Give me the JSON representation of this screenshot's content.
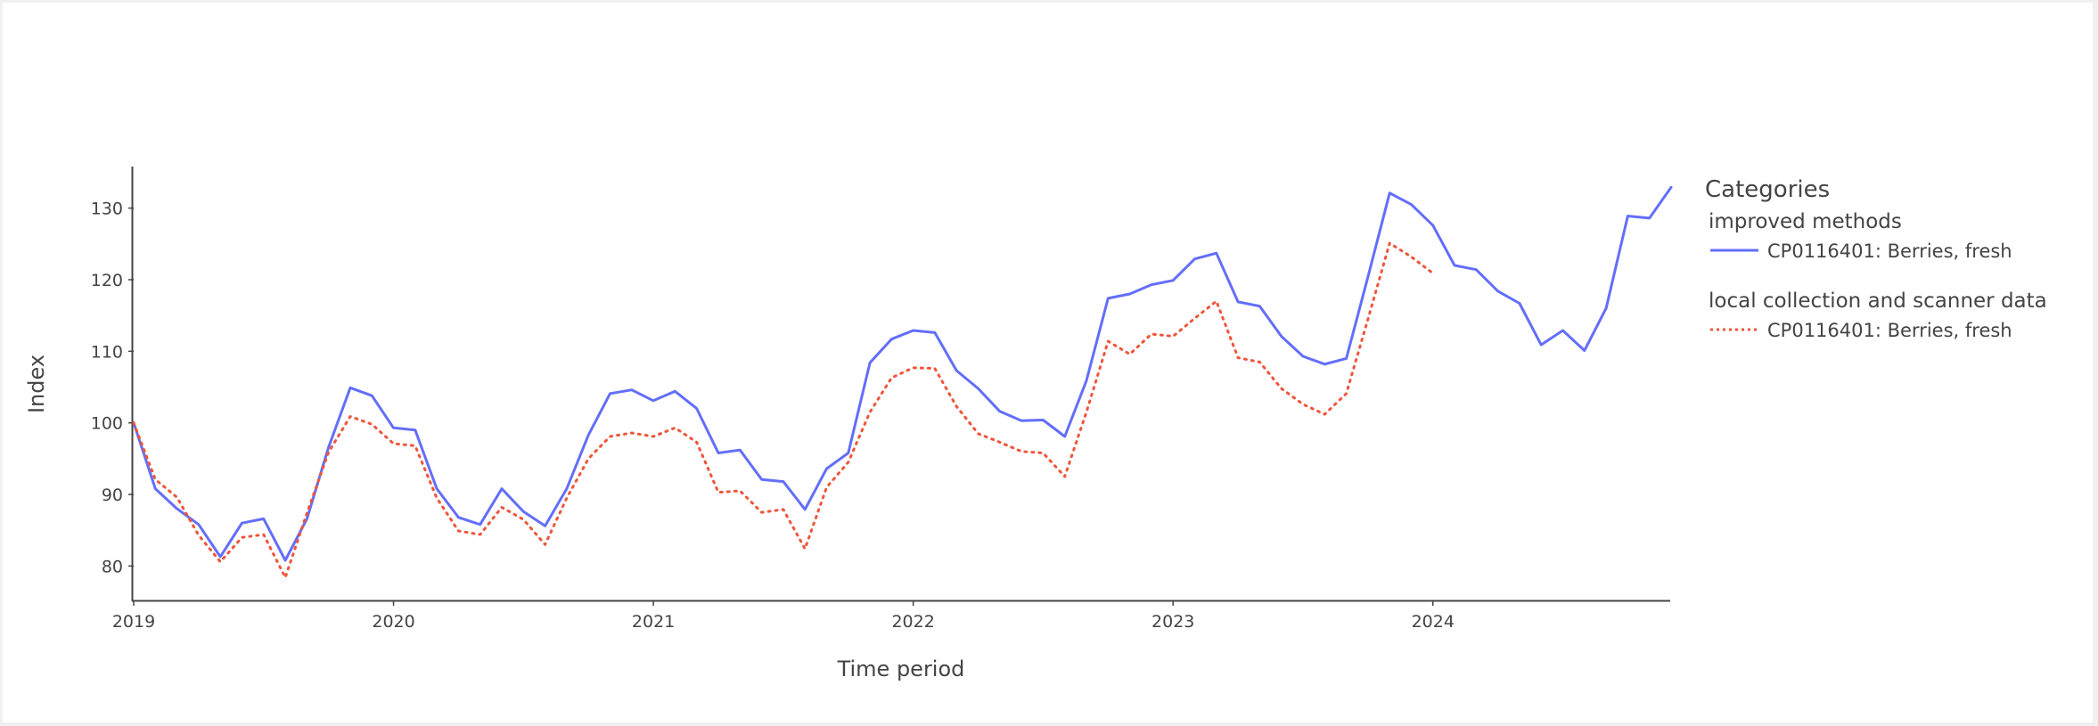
{
  "chart_data": {
    "type": "line",
    "title": "",
    "xlabel": "Time period",
    "ylabel": "Index",
    "x_tick_labels": [
      "2019",
      "2020",
      "2021",
      "2022",
      "2023",
      "2024"
    ],
    "y_ticks": [
      80,
      90,
      100,
      110,
      120,
      130
    ],
    "xlim": [
      "2019-01",
      "2024-12"
    ],
    "ylim": [
      75.2,
      135.8
    ],
    "grid": false,
    "legend": {
      "title": "Categories",
      "placement": "right",
      "groups": [
        {
          "label": "improved methods",
          "entries": [
            "CP0116401: Berries, fresh"
          ]
        },
        {
          "label": "local collection and scanner data",
          "entries": [
            "CP0116401: Berries, fresh"
          ]
        }
      ]
    },
    "series": [
      {
        "name": "CP0116401: Berries, fresh",
        "group": "improved methods",
        "color": "#636efa",
        "dash": "solid",
        "start": "2019-01",
        "values": [
          100.0,
          90.8,
          88.0,
          85.8,
          81.3,
          86.0,
          86.6,
          80.8,
          86.6,
          96.6,
          104.9,
          103.8,
          99.3,
          99.0,
          90.8,
          86.8,
          85.8,
          90.8,
          87.6,
          85.6,
          90.8,
          98.3,
          104.1,
          104.6,
          103.1,
          104.4,
          102.0,
          95.8,
          96.2,
          92.1,
          91.8,
          87.9,
          93.6,
          95.8,
          108.4,
          111.7,
          112.9,
          112.6,
          107.3,
          104.8,
          101.6,
          100.3,
          100.4,
          98.1,
          105.9,
          117.4,
          118.0,
          119.3,
          119.9,
          122.9,
          123.7,
          116.9,
          116.3,
          112.1,
          109.3,
          108.2,
          109.0,
          120.4,
          132.1,
          130.5,
          127.6,
          122.0,
          121.4,
          118.4,
          116.7,
          110.9,
          112.9,
          110.1,
          116.0,
          128.9,
          128.6,
          132.9
        ]
      },
      {
        "name": "CP0116401: Berries, fresh",
        "group": "local collection and scanner data",
        "color": "#ef553b",
        "dash": "dot",
        "start": "2019-01",
        "values": [
          100.0,
          92.1,
          89.6,
          84.3,
          80.6,
          84.0,
          84.4,
          78.4,
          87.4,
          95.9,
          100.9,
          99.8,
          97.1,
          96.8,
          89.5,
          84.9,
          84.4,
          88.2,
          86.5,
          83.0,
          89.5,
          95.0,
          98.1,
          98.6,
          98.1,
          99.3,
          97.3,
          90.3,
          90.5,
          87.5,
          87.9,
          82.4,
          91.0,
          94.5,
          101.5,
          106.3,
          107.7,
          107.6,
          102.3,
          98.5,
          97.3,
          96.0,
          95.8,
          92.5,
          101.5,
          111.4,
          109.6,
          112.4,
          112.1,
          114.6,
          117.0,
          109.1,
          108.5,
          104.8,
          102.6,
          101.2,
          104.1,
          114.5,
          125.1,
          123.2,
          120.9
        ]
      }
    ]
  }
}
